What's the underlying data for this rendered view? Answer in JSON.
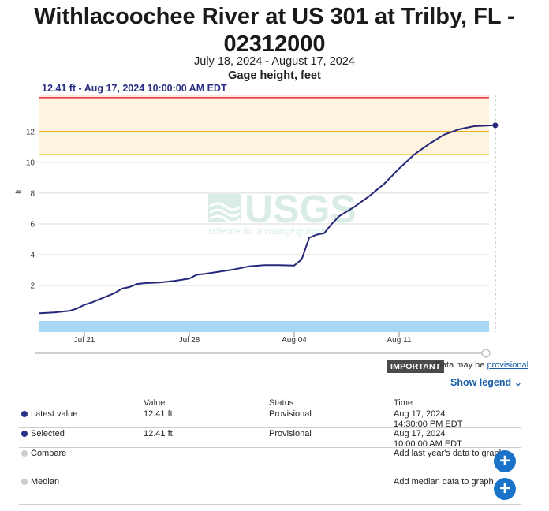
{
  "page": {
    "title_line1": "Withlacoochee River at US 301 at Trilby, FL -",
    "title_line2": "02312000",
    "date_range": "July 18, 2024 - August 17, 2024",
    "parameter": "Gage height, feet",
    "selected_label": "12.41 ft - Aug 17, 2024 10:00:00 AM EDT"
  },
  "colors": {
    "series": "#26287a",
    "threshold_high": "#e0353a",
    "threshold_mid": "#f0a500",
    "threshold_low": "#f3cf3a",
    "band_high": "#fbe3e1",
    "band_mid": "#fdf3df",
    "brush": "#a9d6f5",
    "grid": "#d9d9d9"
  },
  "chart_data": {
    "type": "line",
    "title": "Withlacoochee River at US 301 at Trilby, FL - 02312000",
    "xlabel": "",
    "ylabel": "ft",
    "x_start": "2024-07-18",
    "x_end": "2024-08-17",
    "ylim": [
      -0.2,
      14.4
    ],
    "yticks": [
      2,
      4,
      6,
      8,
      10,
      12
    ],
    "xticks": [
      {
        "date": "2024-07-21",
        "label": "Jul 21"
      },
      {
        "date": "2024-07-28",
        "label": "Jul 28"
      },
      {
        "date": "2024-08-04",
        "label": "Aug 04"
      },
      {
        "date": "2024-08-11",
        "label": "Aug 11"
      }
    ],
    "thresholds": [
      14.2,
      12.0,
      10.5
    ],
    "grid": true,
    "series": [
      {
        "x": [
          "2024-07-18",
          "2024-07-19",
          "2024-07-20",
          "2024-07-20 12:00",
          "2024-07-21",
          "2024-07-21 12:00",
          "2024-07-22",
          "2024-07-23",
          "2024-07-23 12:00",
          "2024-07-24",
          "2024-07-24 12:00",
          "2024-07-25",
          "2024-07-26",
          "2024-07-27",
          "2024-07-28",
          "2024-07-28 12:00",
          "2024-07-29",
          "2024-07-30",
          "2024-07-31",
          "2024-08-01",
          "2024-08-02",
          "2024-08-03",
          "2024-08-04",
          "2024-08-04 12:00",
          "2024-08-05",
          "2024-08-05 12:00",
          "2024-08-06",
          "2024-08-06 12:00",
          "2024-08-07",
          "2024-08-08",
          "2024-08-09",
          "2024-08-10",
          "2024-08-11",
          "2024-08-12",
          "2024-08-13",
          "2024-08-14",
          "2024-08-15",
          "2024-08-16",
          "2024-08-17 10:00"
        ],
        "y": [
          0.2,
          0.25,
          0.35,
          0.5,
          0.75,
          0.9,
          1.1,
          1.5,
          1.8,
          1.9,
          2.1,
          2.15,
          2.2,
          2.3,
          2.45,
          2.7,
          2.75,
          2.9,
          3.05,
          3.25,
          3.32,
          3.32,
          3.3,
          3.7,
          5.1,
          5.3,
          5.4,
          6.0,
          6.5,
          7.1,
          7.8,
          8.6,
          9.6,
          10.5,
          11.2,
          11.8,
          12.15,
          12.35,
          12.41
        ]
      }
    ],
    "watermark": {
      "logo": "USGS",
      "tagline": "science for a changing world"
    }
  },
  "notice": {
    "badge": "IMPORTANT",
    "text": "Data may be",
    "link": "provisional"
  },
  "show_legend": "Show legend",
  "legend": {
    "headers": {
      "value": "Value",
      "status": "Status",
      "time": "Time"
    },
    "rows": [
      {
        "name": "Latest value",
        "value": "12.41 ft",
        "status": "Provisional",
        "time1": "Aug 17, 2024",
        "time2": "14:30:00 PM EDT",
        "color": "#2b2f86"
      },
      {
        "name": "Selected",
        "value": "12.41 ft",
        "status": "Provisional",
        "time1": "Aug 17, 2024",
        "time2": "10:00:00 AM EDT",
        "color": "#2b2f86"
      },
      {
        "name": "Compare",
        "value": "",
        "status": "",
        "time1": "Add last year's data to graph",
        "time2": "",
        "color": "#cccccc"
      },
      {
        "name": "Median",
        "value": "",
        "status": "",
        "time1": "Add median data to graph",
        "time2": "",
        "color": "#cccccc"
      }
    ]
  }
}
